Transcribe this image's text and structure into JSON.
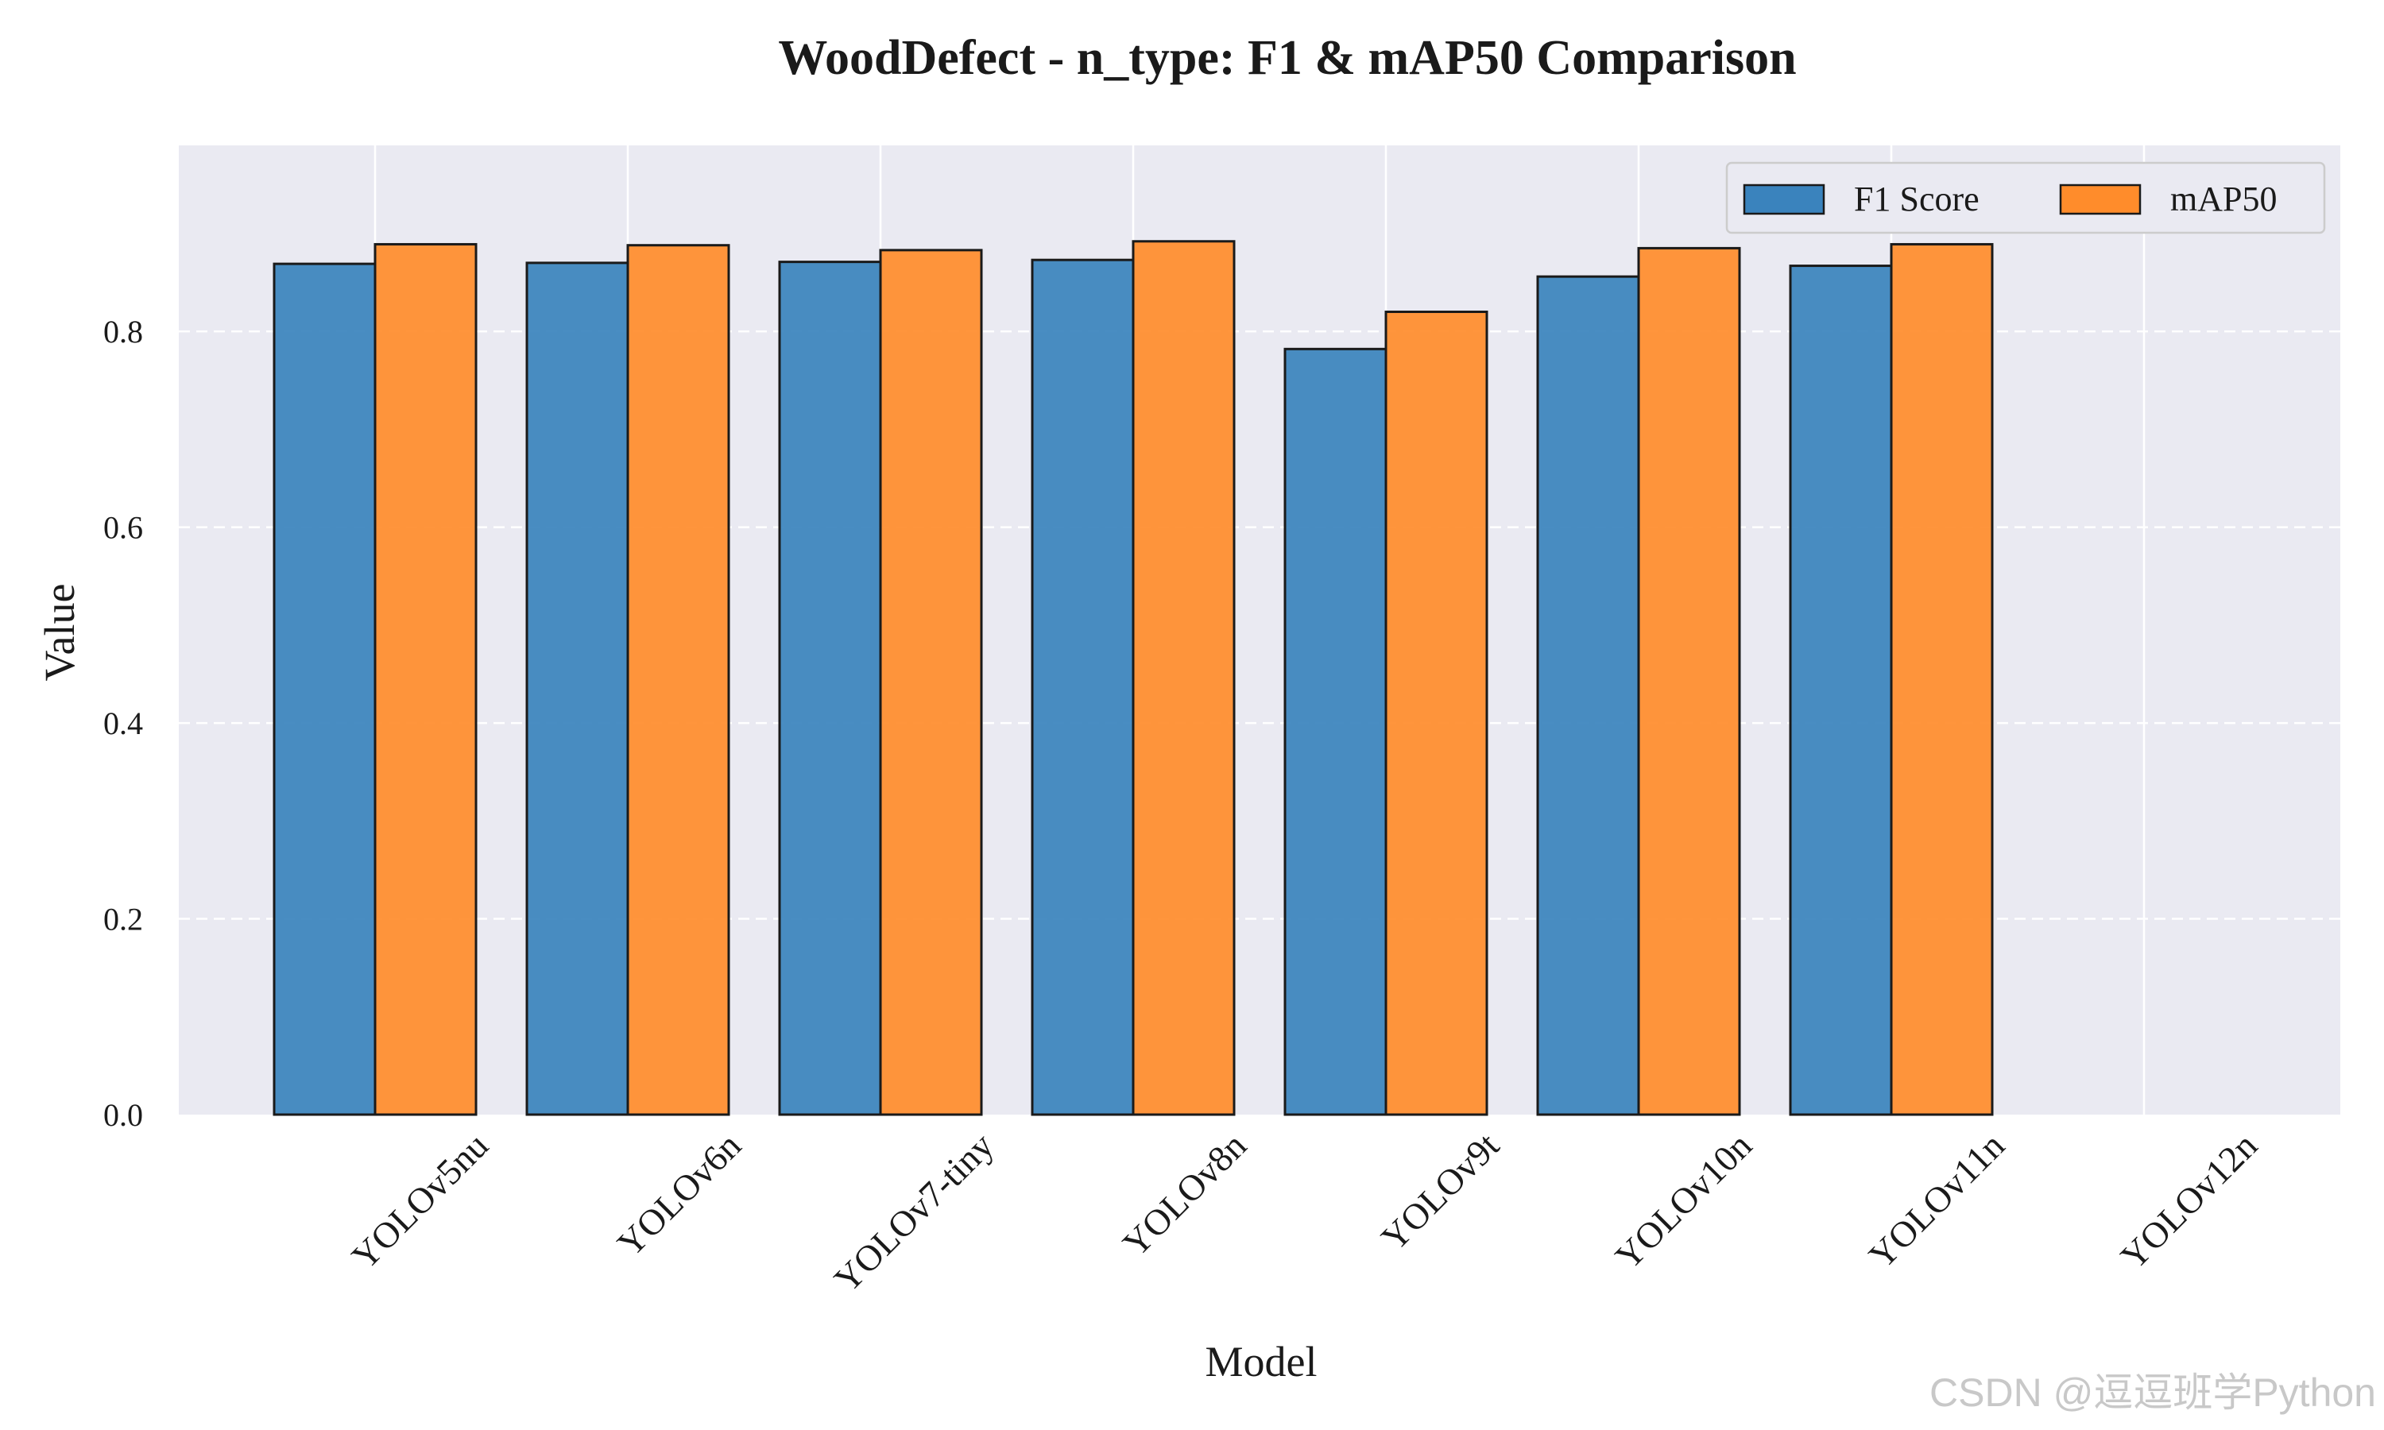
{
  "chart_data": {
    "type": "bar",
    "title": "WoodDefect - n_type: F1 & mAP50 Comparison",
    "xlabel": "Model",
    "ylabel": "Value",
    "categories": [
      "YOLOv5nu",
      "YOLOv6n",
      "YOLOv7-tiny",
      "YOLOv8n",
      "YOLOv9t",
      "YOLOv10n",
      "YOLOv11n",
      "YOLOv12n"
    ],
    "series": [
      {
        "name": "F1 Score",
        "color": "#3a83bd",
        "values": [
          0.869,
          0.87,
          0.871,
          0.873,
          0.782,
          0.856,
          0.867,
          0.0
        ]
      },
      {
        "name": "mAP50",
        "color": "#ff8c2b",
        "values": [
          0.889,
          0.888,
          0.883,
          0.892,
          0.82,
          0.885,
          0.889,
          0.0
        ]
      }
    ],
    "ylim": [
      0,
      0.99
    ],
    "yticks": [
      "0.0",
      "0.2",
      "0.4",
      "0.6",
      "0.8"
    ],
    "grid": true,
    "legend_position": "top-right",
    "background_color": "#eaeaf2",
    "watermark": "CSDN @逗逗班学Python"
  }
}
